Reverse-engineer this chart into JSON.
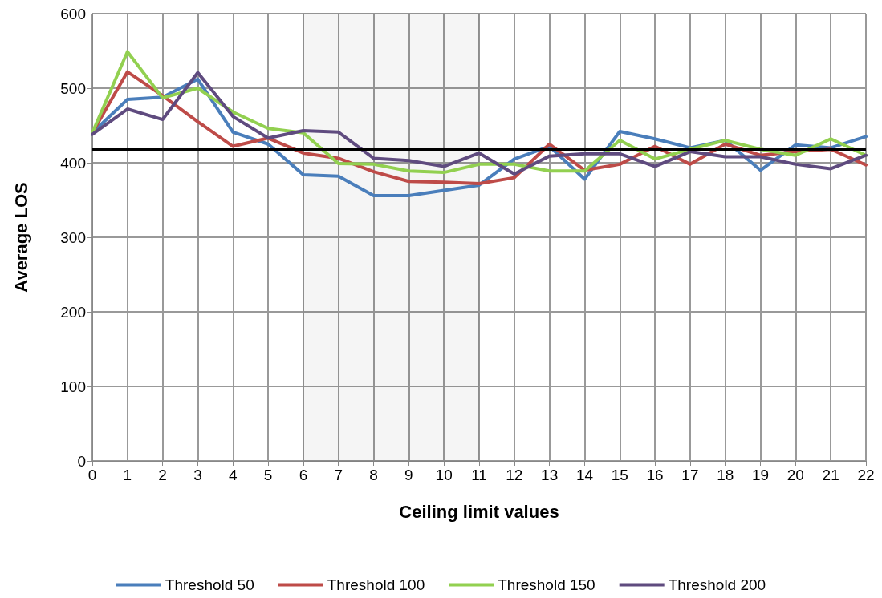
{
  "chart_data": {
    "type": "line",
    "xlabel": "Ceiling limit values",
    "ylabel": "Average LOS",
    "x": [
      0,
      1,
      2,
      3,
      4,
      5,
      6,
      7,
      8,
      9,
      10,
      11,
      12,
      13,
      14,
      15,
      16,
      17,
      18,
      19,
      20,
      21,
      22
    ],
    "xlim": [
      0,
      22
    ],
    "xticks": [
      0,
      1,
      2,
      3,
      4,
      5,
      6,
      7,
      8,
      9,
      10,
      11,
      12,
      13,
      14,
      15,
      16,
      17,
      18,
      19,
      20,
      21,
      22
    ],
    "series": [
      {
        "name": "Threshold 50",
        "color": "#4a7ebb",
        "values": [
          440,
          485,
          488,
          512,
          441,
          425,
          384,
          382,
          356,
          356,
          363,
          370,
          405,
          422,
          378,
          442,
          432,
          420,
          430,
          390,
          424,
          420,
          435
        ]
      },
      {
        "name": "Threshold 100",
        "color": "#be4b48",
        "values": [
          440,
          522,
          490,
          455,
          422,
          433,
          413,
          406,
          388,
          375,
          374,
          372,
          380,
          425,
          390,
          398,
          422,
          398,
          425,
          410,
          415,
          418,
          397
        ]
      },
      {
        "name": "Threshold 150",
        "color": "#92d050",
        "values": [
          440,
          549,
          487,
          500,
          468,
          446,
          440,
          399,
          398,
          389,
          387,
          398,
          398,
          389,
          389,
          430,
          405,
          418,
          430,
          418,
          410,
          432,
          410
        ]
      },
      {
        "name": "Threshold 200",
        "color": "#5f4b7f",
        "values": [
          438,
          472,
          458,
          521,
          462,
          433,
          443,
          441,
          406,
          403,
          395,
          413,
          385,
          409,
          412,
          412,
          395,
          415,
          408,
          408,
          398,
          392,
          410
        ]
      }
    ],
    "ylim": [
      0,
      600
    ],
    "yticks": [
      0,
      100,
      200,
      300,
      400,
      500,
      600
    ],
    "ref_lines": [
      {
        "axis": "y",
        "value": 418,
        "color": "#000000"
      }
    ],
    "bands": [
      {
        "axis": "x",
        "from": 6,
        "to": 11,
        "color": "#000000"
      }
    ],
    "grid": true,
    "legend": "bottom",
    "marker": "none",
    "line_style": "solid"
  }
}
